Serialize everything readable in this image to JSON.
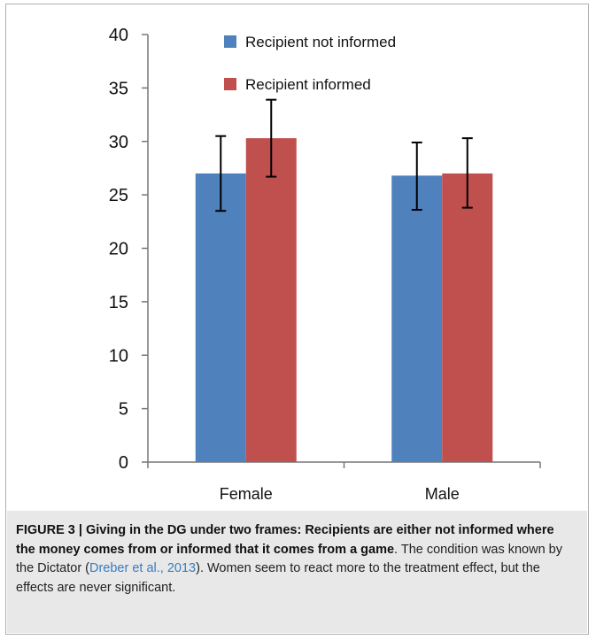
{
  "chart_data": {
    "type": "bar",
    "categories": [
      "Female",
      "Male"
    ],
    "series": [
      {
        "name": "Recipient not informed",
        "color": "#4f81bd",
        "values": [
          27.0,
          26.8
        ],
        "error_low": [
          23.5,
          23.6
        ],
        "error_high": [
          30.5,
          29.9
        ]
      },
      {
        "name": "Recipient informed",
        "color": "#c0504d",
        "values": [
          30.3,
          27.0
        ],
        "error_low": [
          26.7,
          23.8
        ],
        "error_high": [
          33.9,
          30.3
        ]
      }
    ],
    "ylim": [
      0,
      40
    ],
    "yticks": [
      0,
      5,
      10,
      15,
      20,
      25,
      30,
      35,
      40
    ],
    "title": "",
    "xlabel": "",
    "ylabel": "",
    "grid": false,
    "legend_position": "top-right"
  },
  "caption": {
    "label": "FIGURE 3 | Giving in the DG under two frames: Recipients are either not informed where the money comes from or informed that it comes from a game",
    "text_before_cite": ". The condition was known by the Dictator (",
    "cite": "Dreber et al., 2013",
    "text_after_cite": "). Women seem to react more to the treatment effect, but the effects are never significant."
  }
}
